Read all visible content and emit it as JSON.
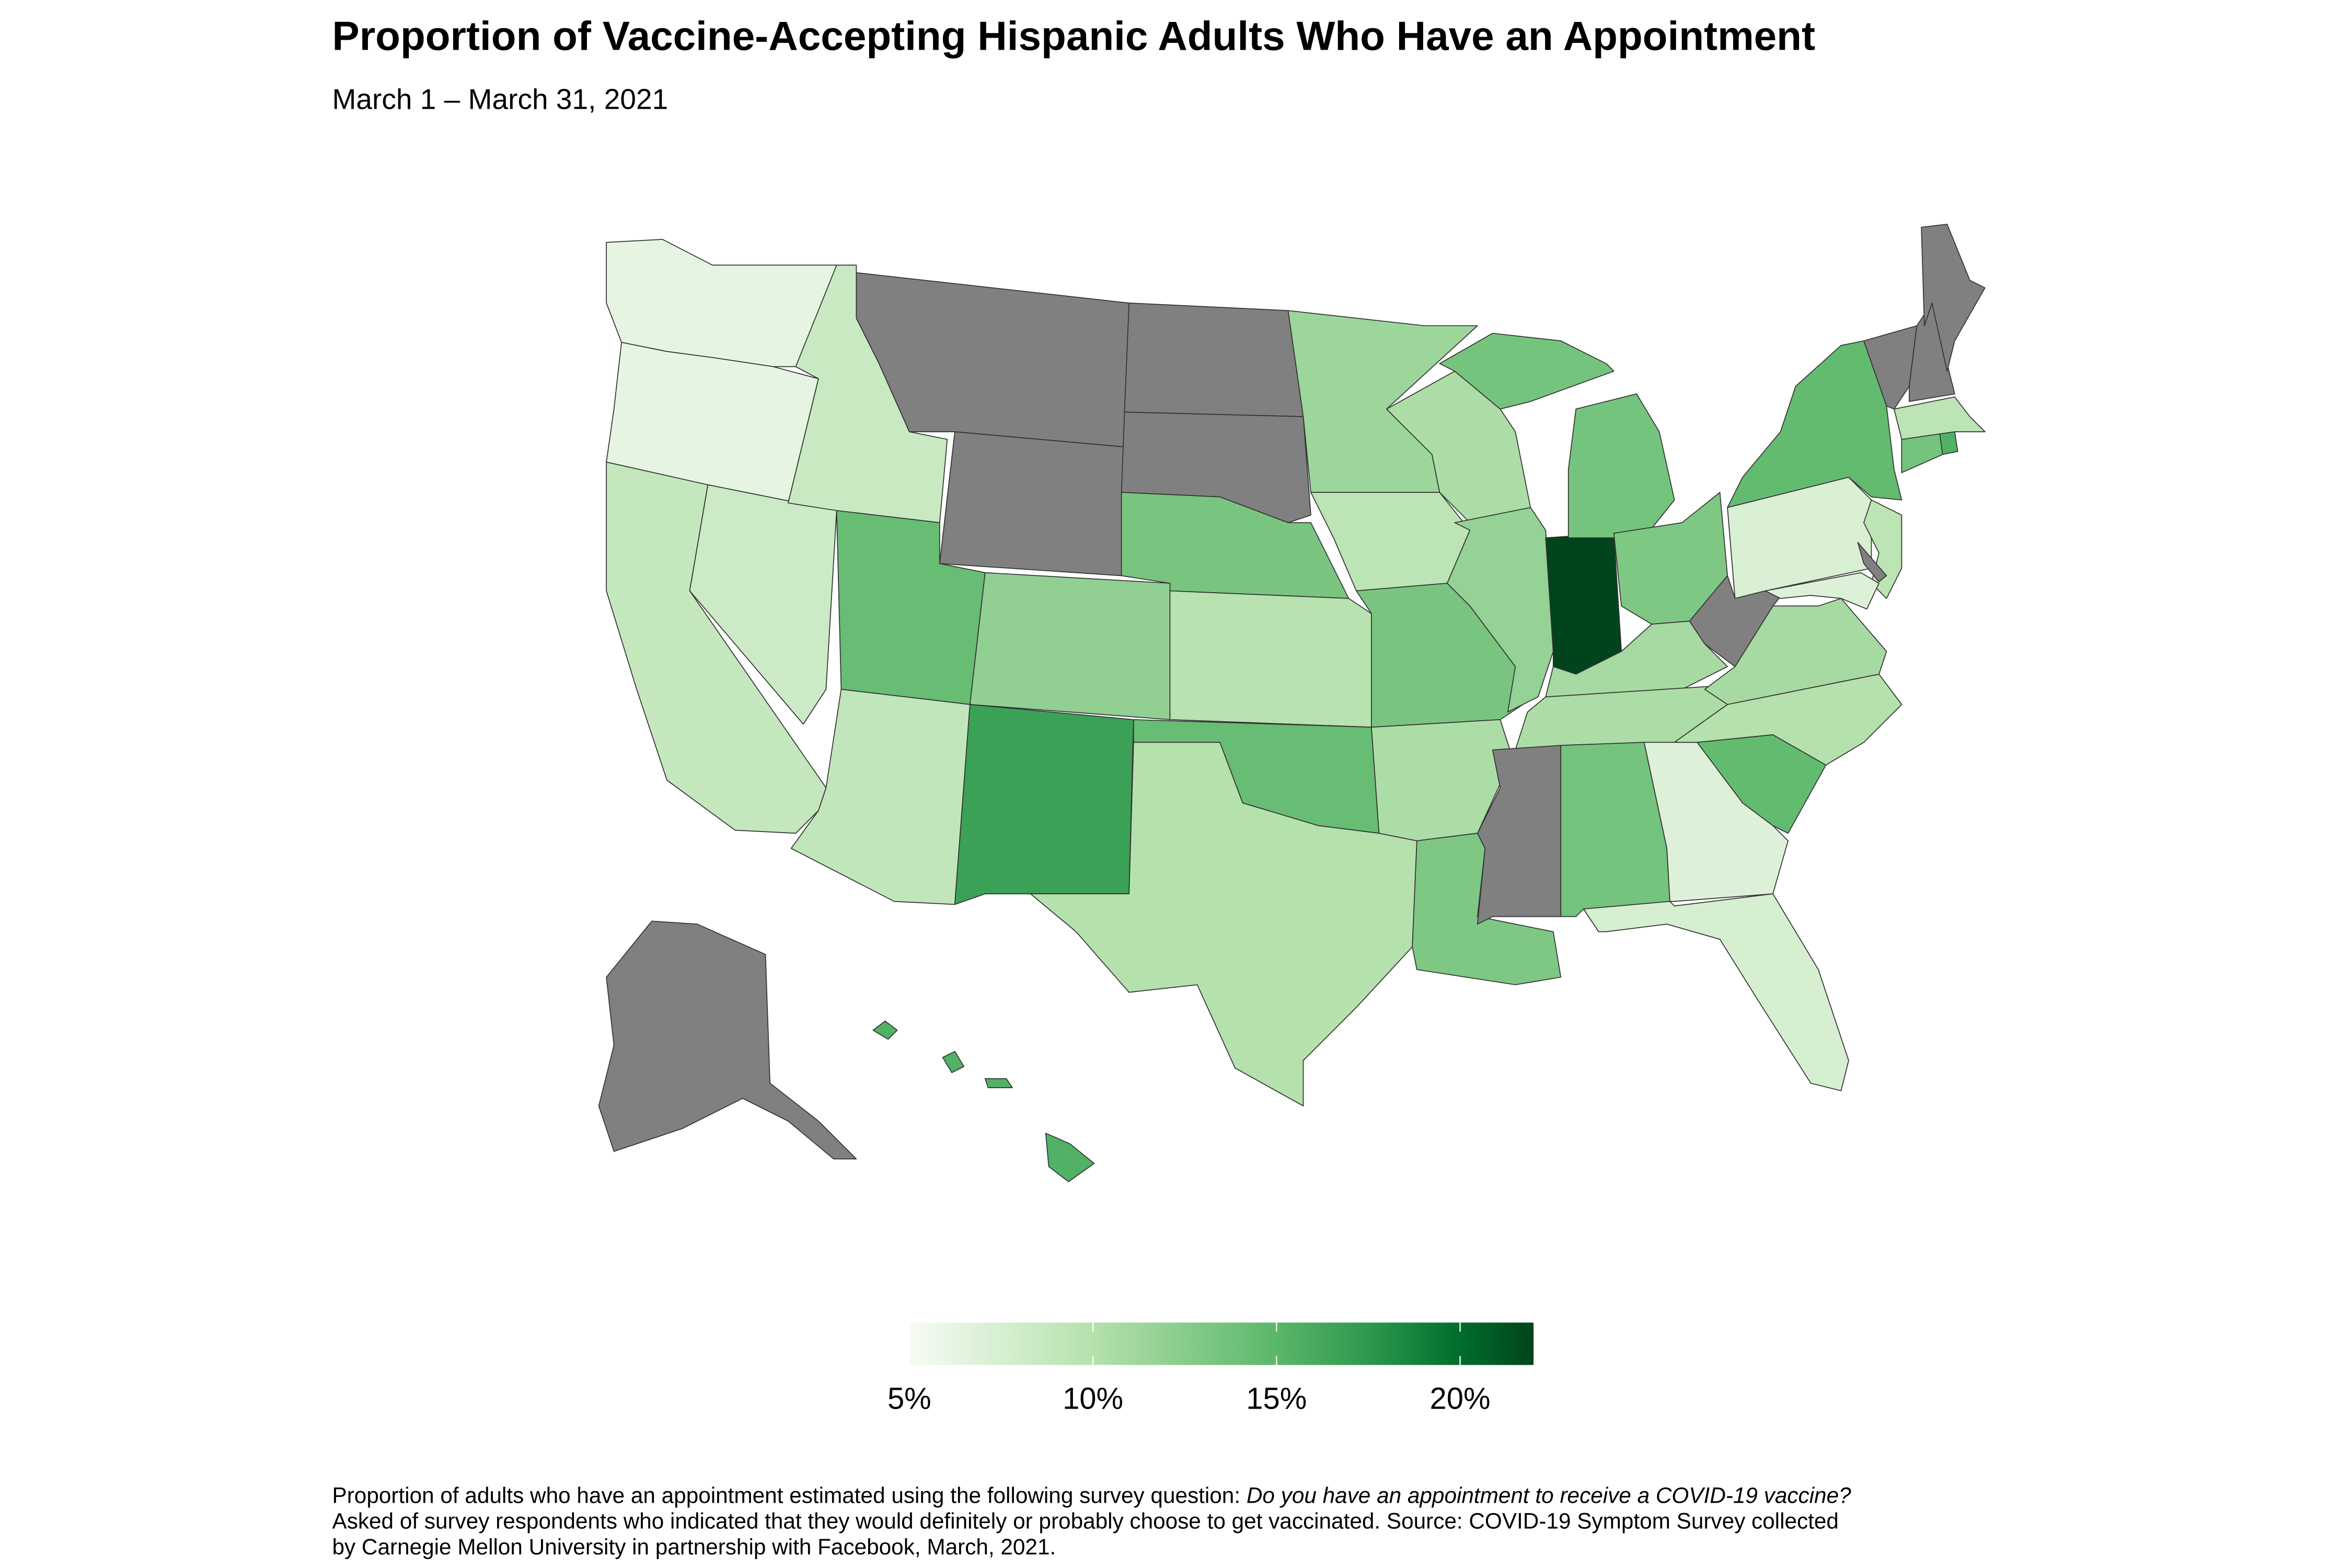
{
  "header": {
    "title": "Proportion of Vaccine-Accepting Hispanic Adults Who Have an Appointment",
    "subtitle": "March 1 – March 31, 2021"
  },
  "footer": {
    "line1_plain": "Proportion of adults who have an appointment estimated using the following survey question: ",
    "line1_italic": "Do you have an appointment to receive a COVID-19 vaccine?",
    "line2": "Asked of survey respondents who indicated that they would definitely or probably choose to get vaccinated. Source: COVID-19 Symptom Survey collected",
    "line3": "by Carnegie Mellon University in partnership with Facebook, March, 2021."
  },
  "chart_data": {
    "type": "choropleth",
    "title": "Proportion of Vaccine-Accepting Hispanic Adults Who Have an Appointment",
    "subtitle": "March 1 – March 31, 2021",
    "unit": "%",
    "colorscale": {
      "range": [
        5,
        22
      ],
      "ticks": [
        5,
        10,
        15,
        20
      ],
      "tick_labels": [
        "5%",
        "10%",
        "15%",
        "20%"
      ],
      "palette": "Greens",
      "stops": [
        {
          "value": 5,
          "color": "#f7fcf5"
        },
        {
          "value": 10,
          "color": "#b5e1ad"
        },
        {
          "value": 15,
          "color": "#5ab769"
        },
        {
          "value": 17.5,
          "color": "#2e984e"
        },
        {
          "value": 20,
          "color": "#006d2c"
        },
        {
          "value": 22,
          "color": "#00441b"
        }
      ],
      "no_data_color": "#808080",
      "legend_placement": "bottom"
    },
    "states": [
      {
        "id": "WA",
        "value": 6.3
      },
      {
        "id": "OR",
        "value": 6.3
      },
      {
        "id": "CA",
        "value": 8.8
      },
      {
        "id": "NV",
        "value": 8.3
      },
      {
        "id": "ID",
        "value": 8.5
      },
      {
        "id": "MT",
        "value": null
      },
      {
        "id": "WY",
        "value": null
      },
      {
        "id": "ND",
        "value": null
      },
      {
        "id": "SD",
        "value": null
      },
      {
        "id": "UT",
        "value": 14.3
      },
      {
        "id": "CO",
        "value": 12.0
      },
      {
        "id": "AZ",
        "value": 9.0
      },
      {
        "id": "NM",
        "value": 16.8
      },
      {
        "id": "NE",
        "value": 13.3
      },
      {
        "id": "KS",
        "value": 9.8
      },
      {
        "id": "OK",
        "value": 14.3
      },
      {
        "id": "TX",
        "value": 10.0
      },
      {
        "id": "MN",
        "value": 11.3
      },
      {
        "id": "IA",
        "value": 9.5
      },
      {
        "id": "MO",
        "value": 13.3
      },
      {
        "id": "AR",
        "value": 10.5
      },
      {
        "id": "LA",
        "value": 13.0
      },
      {
        "id": "WI",
        "value": 10.5
      },
      {
        "id": "IL",
        "value": 11.8
      },
      {
        "id": "IN",
        "value": 22.0
      },
      {
        "id": "MI",
        "value": 13.5
      },
      {
        "id": "OH",
        "value": 13.0
      },
      {
        "id": "KY",
        "value": 10.8
      },
      {
        "id": "TN",
        "value": 10.5
      },
      {
        "id": "MS",
        "value": null
      },
      {
        "id": "AL",
        "value": 13.5
      },
      {
        "id": "GA",
        "value": 7.0
      },
      {
        "id": "FL",
        "value": 7.5
      },
      {
        "id": "SC",
        "value": 14.5
      },
      {
        "id": "NC",
        "value": 10.0
      },
      {
        "id": "VA",
        "value": 10.8
      },
      {
        "id": "WV",
        "value": null
      },
      {
        "id": "PA",
        "value": 7.2
      },
      {
        "id": "NJ",
        "value": 9.5
      },
      {
        "id": "DE",
        "value": null
      },
      {
        "id": "MD",
        "value": 7.0
      },
      {
        "id": "NY",
        "value": 14.5
      },
      {
        "id": "CT",
        "value": 13.5
      },
      {
        "id": "RI",
        "value": 15.5
      },
      {
        "id": "MA",
        "value": 9.5
      },
      {
        "id": "VT",
        "value": null
      },
      {
        "id": "NH",
        "value": null
      },
      {
        "id": "ME",
        "value": null
      },
      {
        "id": "AK",
        "value": null
      },
      {
        "id": "HI",
        "value": 15.5
      }
    ]
  }
}
